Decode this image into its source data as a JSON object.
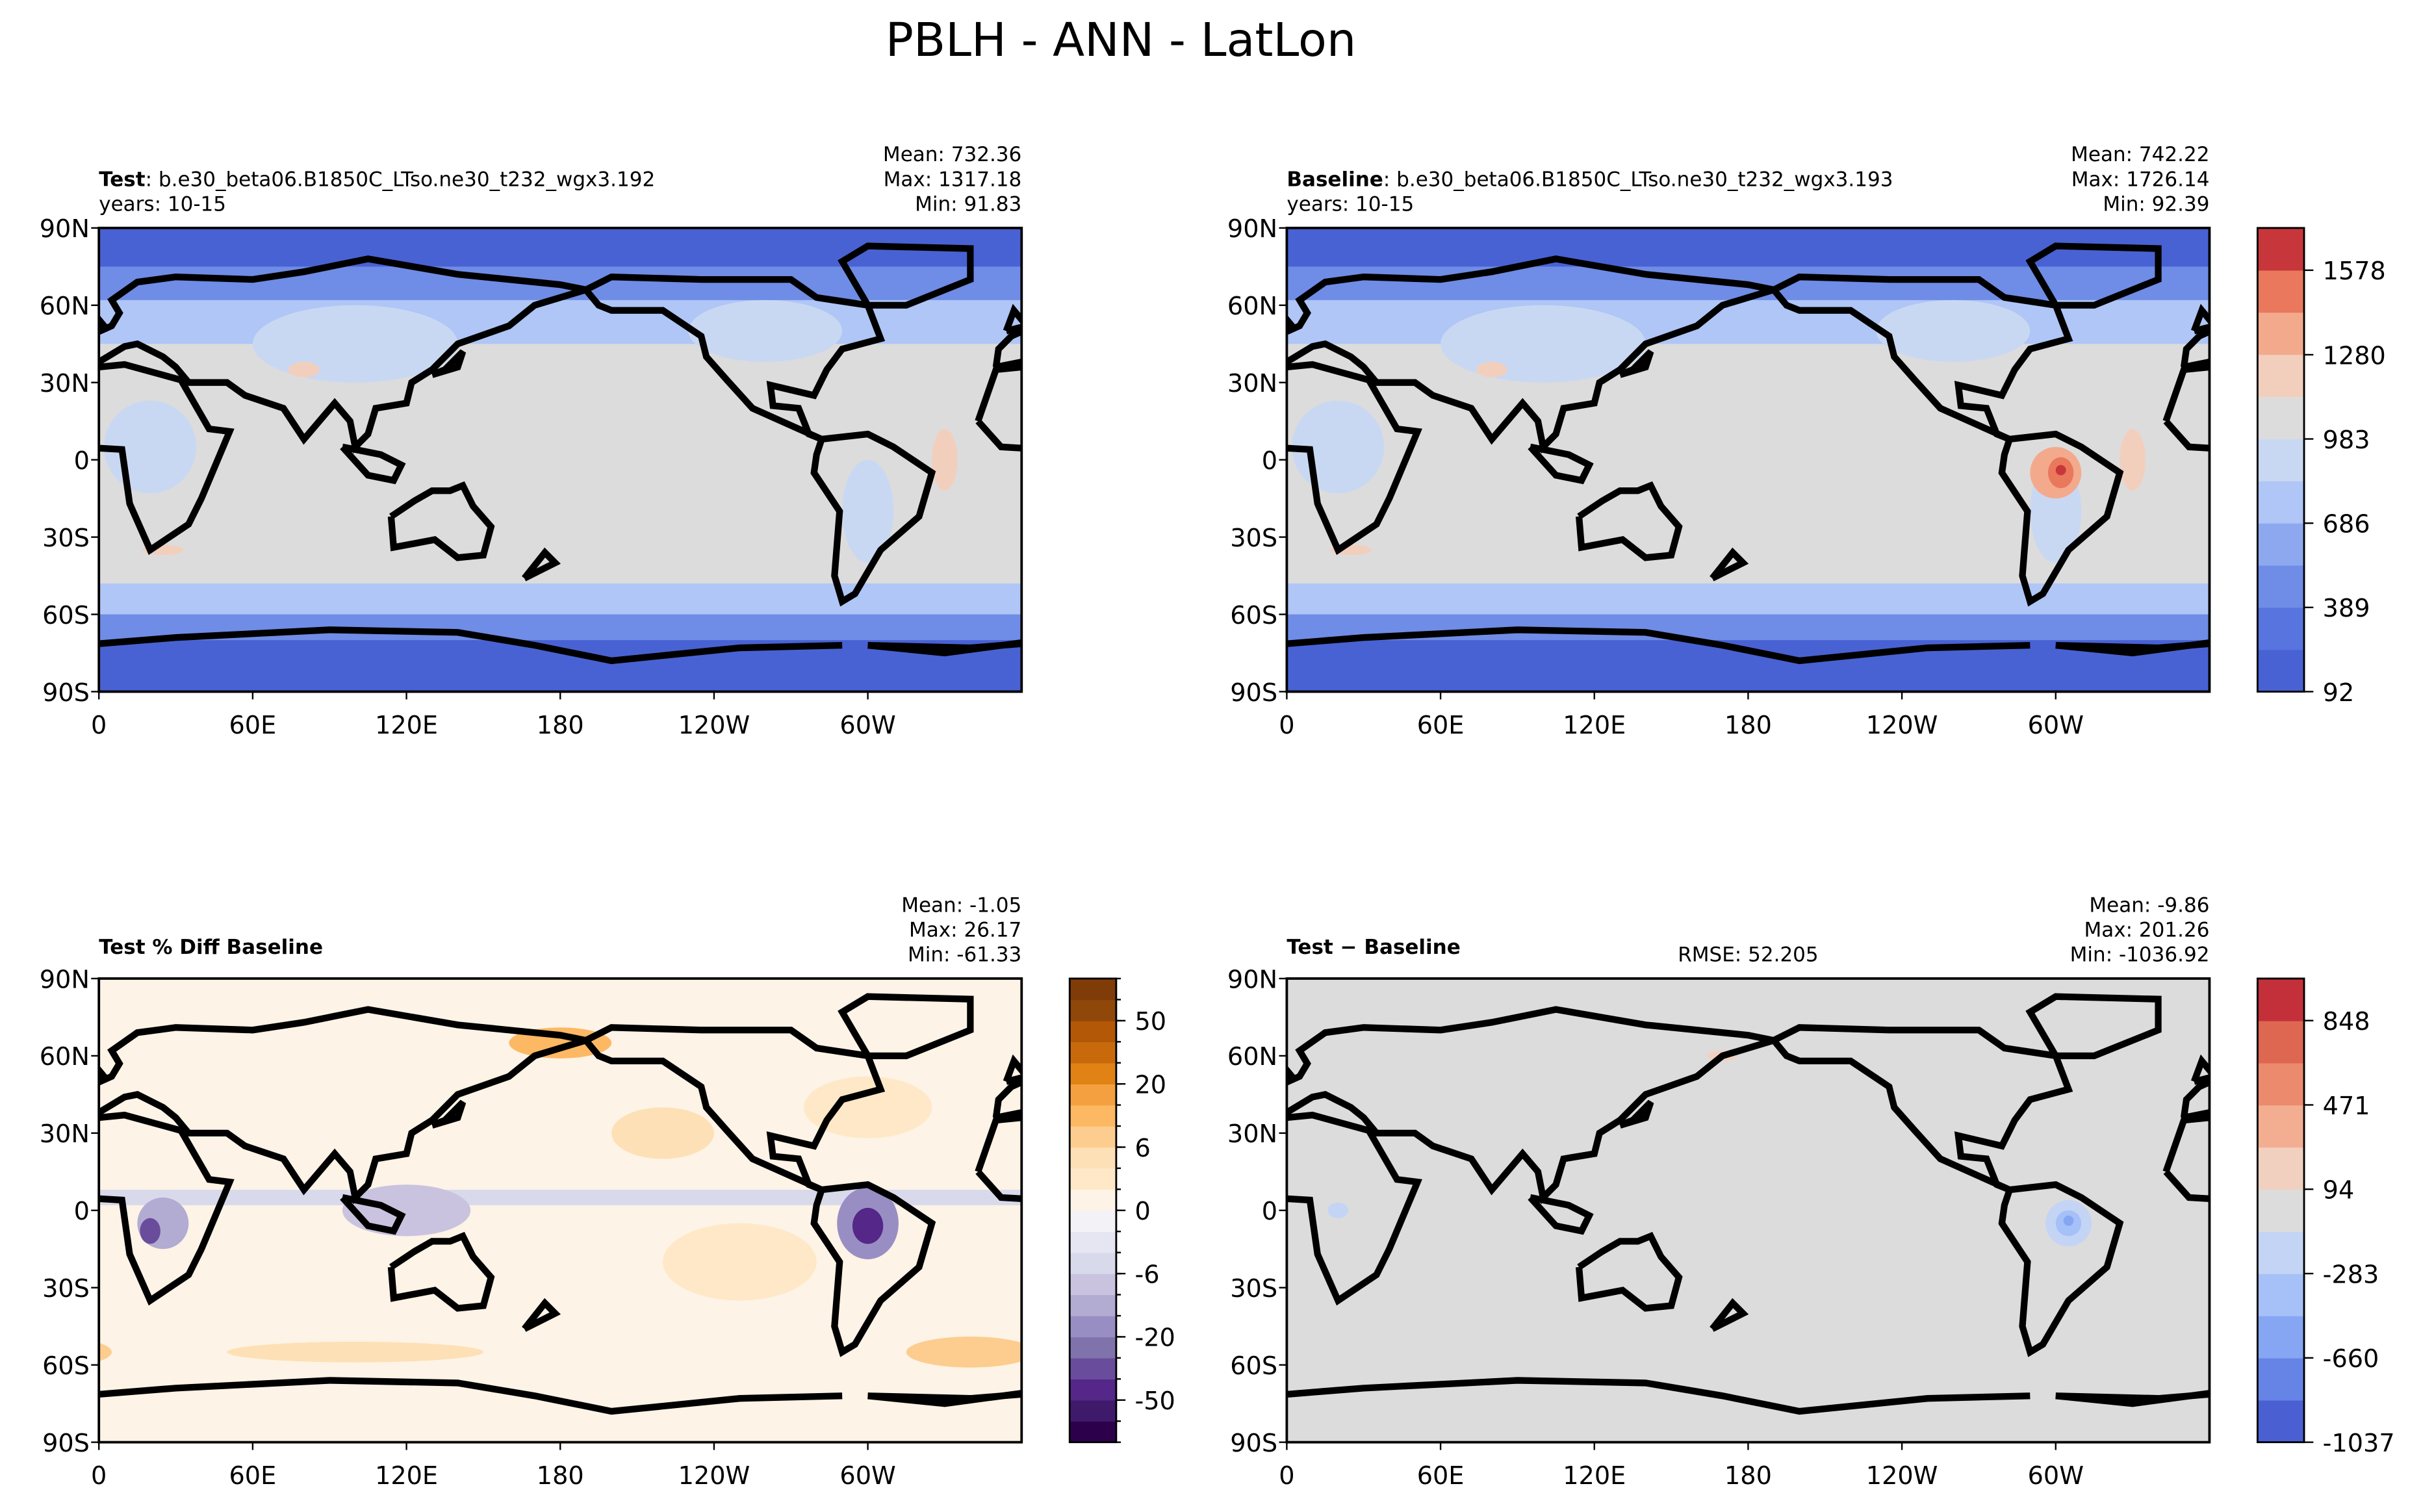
{
  "title": "PBLH - ANN - LatLon",
  "panels": [
    {
      "title_bold": "Test",
      "title": ": b.e30_beta06.B1850C_LTso.ne30_t232_wgx3.192",
      "subtitle": "years: 10-15",
      "stats": [
        "Mean: 732.36",
        "Max: 1317.18",
        "Min: 91.83"
      ]
    },
    {
      "title_bold": "Baseline",
      "title": ": b.e30_beta06.B1850C_LTso.ne30_t232_wgx3.193",
      "subtitle": "years: 10-15",
      "stats": [
        "Mean: 742.22",
        "Max: 1726.14",
        "Min: 92.39"
      ]
    },
    {
      "title_bold": "Test % Diff Baseline",
      "stats": [
        "Mean: -1.05",
        "Max: 26.17",
        "Min: -61.33"
      ]
    },
    {
      "title_bold": "Test − Baseline",
      "center": "RMSE: 52.205",
      "stats": [
        "Mean: -9.86",
        "Max: 201.26",
        "Min: -1036.92"
      ]
    }
  ],
  "map_axes": {
    "xlim": [
      0,
      360
    ],
    "xticks": [
      0,
      {
        "value": 60,
        "label": "60E"
      },
      {
        "value": 120,
        "label": "120E"
      },
      180,
      {
        "value": 240,
        "label": "120W"
      },
      {
        "value": 300,
        "label": "60W"
      }
    ],
    "ylim": [
      -90,
      90
    ],
    "yticks": [
      {
        "value": -90,
        "label": "90S"
      },
      {
        "value": -60,
        "label": "60S"
      },
      {
        "value": -30,
        "label": "30S"
      },
      0,
      {
        "value": 30,
        "label": "30N"
      },
      {
        "value": 60,
        "label": "60N"
      },
      {
        "value": 90,
        "label": "90N"
      }
    ]
  },
  "colorbars": [
    {
      "lim": [
        92,
        1727
      ],
      "ticks": [
        92,
        389,
        686,
        983,
        1280,
        1578
      ],
      "colors": [
        "#4862d4",
        "#5874de",
        "#6f8ce6",
        "#8ea8f0",
        "#afc6f6",
        "#c9d8f2",
        "#dcdcdc",
        "#f2cfbd",
        "#f3aa8c",
        "#e9785d",
        "#c7363a"
      ]
    },
    {
      "levels": [
        -70,
        -60,
        -50,
        -40,
        -30,
        -20,
        -15,
        -10,
        -6,
        -4,
        -2,
        0,
        2,
        4,
        6,
        10,
        15,
        20,
        30,
        40,
        50,
        60,
        70
      ],
      "ticks": [
        -50,
        -20,
        -6,
        0,
        6,
        20,
        50
      ],
      "colors": [
        "#2d004b",
        "#3f1a6b",
        "#542788",
        "#6a4c9c",
        "#8073ac",
        "#998ec3",
        "#b2abd2",
        "#c9c3e0",
        "#d8daeb",
        "#e6e6f2",
        "#f2f2f7",
        "#fdf3e6",
        "#fee8c8",
        "#fee0b6",
        "#fdcd8f",
        "#fdb863",
        "#f5a040",
        "#e08214",
        "#c86a0c",
        "#b35806",
        "#8f470a",
        "#7f3b08"
      ]
    },
    {
      "lim": [
        -1037,
        1036
      ],
      "ticks": [
        -1037,
        -660,
        -283,
        94,
        471,
        848
      ],
      "colors": [
        "#4a60d2",
        "#6584e5",
        "#86a6f3",
        "#a6c0f8",
        "#c4d4f5",
        "#dcdcdc",
        "#f1d0c0",
        "#f3ae92",
        "#ec8a6e",
        "#dd6750",
        "#c3303a"
      ]
    }
  ]
}
